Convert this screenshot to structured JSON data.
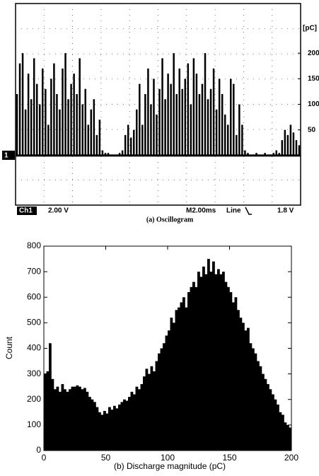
{
  "chart_data": [
    {
      "type": "spikes",
      "y_unit": "[pC]",
      "channel_marker": "1",
      "channel": "Ch1",
      "volts_per_div": "2.00 V",
      "timebase": "M2.00ms",
      "trigger_source": "Line",
      "trigger_level": "1.8 V",
      "caption": "(a) Oscillogram",
      "color": "#000000",
      "ylim": [
        -97,
        297
      ],
      "yticks": [
        50,
        100,
        150,
        200
      ],
      "grid": true,
      "values": [
        120,
        180,
        200,
        90,
        160,
        110,
        190,
        140,
        100,
        170,
        130,
        60,
        150,
        180,
        120,
        90,
        170,
        200,
        110,
        140,
        160,
        120,
        190,
        100,
        130,
        60,
        90,
        110,
        40,
        70,
        10,
        5,
        5,
        0,
        0,
        0,
        5,
        10,
        40,
        60,
        35,
        50,
        90,
        140,
        60,
        120,
        170,
        100,
        150,
        80,
        130,
        190,
        110,
        160,
        140,
        200,
        120,
        170,
        130,
        150,
        180,
        100,
        190,
        160,
        120,
        140,
        200,
        110,
        130,
        170,
        90,
        150,
        120,
        80,
        60,
        150,
        140,
        40,
        100,
        60,
        10,
        5,
        0,
        0,
        5,
        0,
        0,
        5,
        0,
        0,
        5,
        10,
        5,
        30,
        50,
        40,
        60,
        45,
        30,
        20
      ]
    },
    {
      "type": "histogram",
      "y_label": "Count",
      "x_label": "(b)  Discharge magnitude (pC)",
      "color": "#000000",
      "xlim": [
        0,
        200
      ],
      "xticks": [
        0,
        50,
        100,
        150,
        200
      ],
      "ylim": [
        0,
        800
      ],
      "yticks": [
        0,
        100,
        200,
        300,
        400,
        500,
        600,
        700,
        800
      ],
      "bins": [
        0,
        2,
        4,
        6,
        8,
        10,
        12,
        14,
        16,
        18,
        20,
        22,
        24,
        26,
        28,
        30,
        32,
        34,
        36,
        38,
        40,
        42,
        44,
        46,
        48,
        50,
        52,
        54,
        56,
        58,
        60,
        62,
        64,
        66,
        68,
        70,
        72,
        74,
        76,
        78,
        80,
        82,
        84,
        86,
        88,
        90,
        92,
        94,
        96,
        98,
        100,
        102,
        104,
        106,
        108,
        110,
        112,
        114,
        116,
        118,
        120,
        122,
        124,
        126,
        128,
        130,
        132,
        134,
        136,
        138,
        140,
        142,
        144,
        146,
        148,
        150,
        152,
        154,
        156,
        158,
        160,
        162,
        164,
        166,
        168,
        170,
        172,
        174,
        176,
        178,
        180,
        182,
        184,
        186,
        188,
        190,
        192,
        194,
        196,
        198,
        200
      ],
      "values": [
        300,
        310,
        420,
        280,
        240,
        250,
        230,
        260,
        240,
        230,
        240,
        250,
        250,
        255,
        250,
        240,
        245,
        230,
        210,
        200,
        190,
        170,
        150,
        140,
        155,
        145,
        170,
        160,
        175,
        165,
        180,
        190,
        200,
        195,
        210,
        230,
        220,
        250,
        240,
        260,
        290,
        320,
        300,
        330,
        310,
        350,
        380,
        400,
        420,
        450,
        470,
        520,
        500,
        550,
        560,
        580,
        600,
        560,
        620,
        640,
        660,
        640,
        700,
        680,
        720,
        690,
        750,
        700,
        740,
        690,
        710,
        690,
        700,
        660,
        640,
        620,
        580,
        600,
        550,
        520,
        500,
        470,
        480,
        420,
        400,
        380,
        350,
        330,
        300,
        280,
        260,
        240,
        220,
        200,
        180,
        150,
        140,
        110,
        100,
        90
      ]
    }
  ]
}
